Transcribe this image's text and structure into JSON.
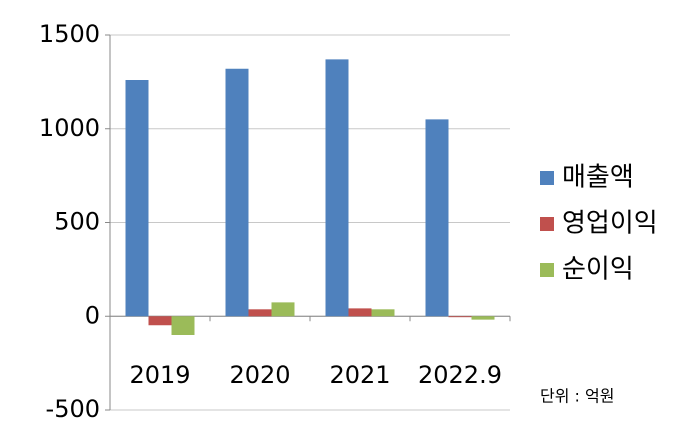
{
  "chart_data": {
    "type": "bar",
    "categories": [
      "2019",
      "2020",
      "2021",
      "2022.9"
    ],
    "series": [
      {
        "name": "매출액",
        "color": "#4f81bd",
        "values": [
          1260,
          1320,
          1370,
          1050
        ]
      },
      {
        "name": "영업이익",
        "color": "#c0504d",
        "values": [
          -48,
          37,
          42,
          -5
        ]
      },
      {
        "name": "순이익",
        "color": "#9bbb59",
        "values": [
          -100,
          74,
          37,
          -18
        ]
      }
    ],
    "ylim": [
      -500,
      1500
    ],
    "yticks": [
      -500,
      0,
      500,
      1000,
      1500
    ],
    "grid": true,
    "legend": "right",
    "annotation": "단위 : 억원"
  }
}
